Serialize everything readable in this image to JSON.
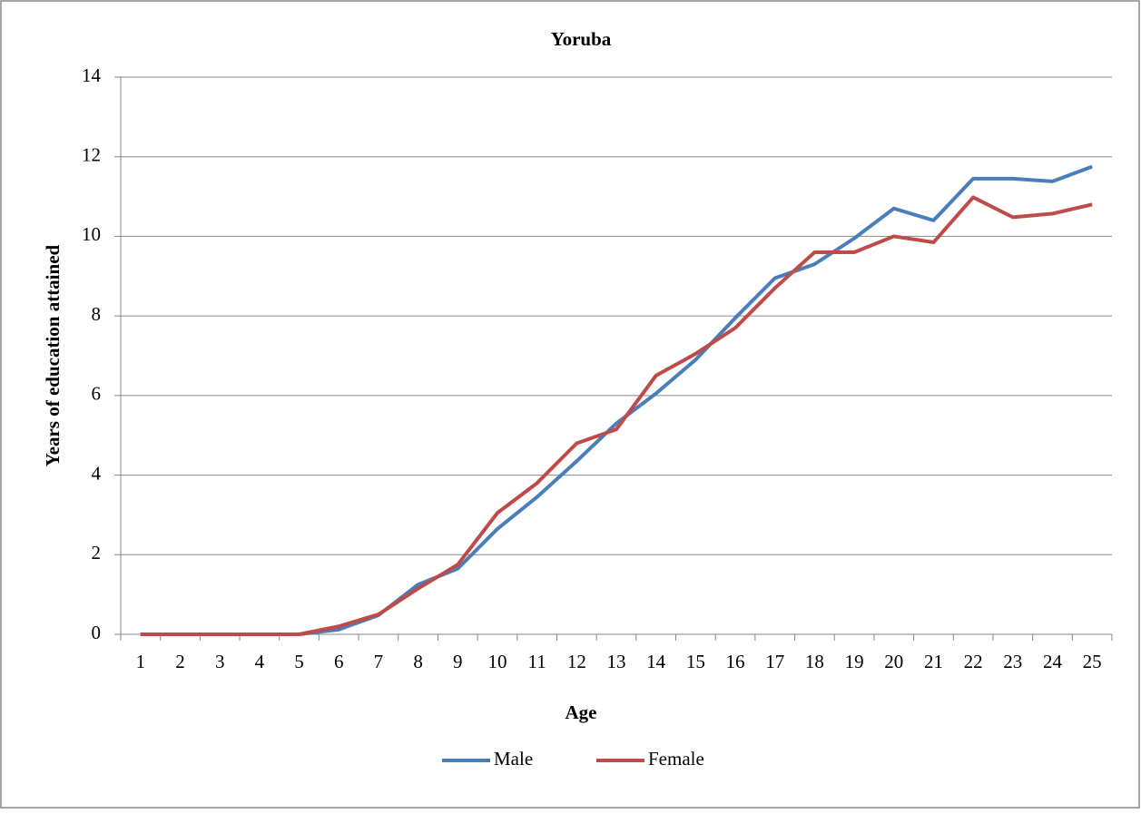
{
  "chart_data": {
    "type": "line",
    "title": "Yoruba",
    "x_label": "Age",
    "y_label": "Years of education attained",
    "categories": [
      "1",
      "2",
      "3",
      "4",
      "5",
      "6",
      "7",
      "8",
      "9",
      "10",
      "11",
      "12",
      "13",
      "14",
      "15",
      "16",
      "17",
      "18",
      "19",
      "20",
      "21",
      "22",
      "23",
      "24",
      "25"
    ],
    "series": [
      {
        "name": "Male",
        "color": "#4a7ebb",
        "values": [
          0,
          0,
          0,
          0,
          0,
          0.12,
          0.48,
          1.25,
          1.65,
          2.65,
          3.45,
          4.35,
          5.3,
          6.05,
          6.9,
          7.95,
          8.95,
          9.3,
          9.95,
          10.7,
          10.4,
          11.45,
          11.45,
          11.38,
          11.75
        ]
      },
      {
        "name": "Female",
        "color": "#be4b48",
        "values": [
          0,
          0,
          0,
          0,
          0,
          0.2,
          0.5,
          1.15,
          1.75,
          3.05,
          3.8,
          4.8,
          5.15,
          6.5,
          7.05,
          7.7,
          8.7,
          9.6,
          9.6,
          10.0,
          9.85,
          10.98,
          10.48,
          10.57,
          10.8
        ]
      }
    ],
    "ylim": [
      0,
      14
    ],
    "yticks": [
      0,
      2,
      4,
      6,
      8,
      10,
      12,
      14
    ],
    "grid": true,
    "legend": "bottom"
  }
}
